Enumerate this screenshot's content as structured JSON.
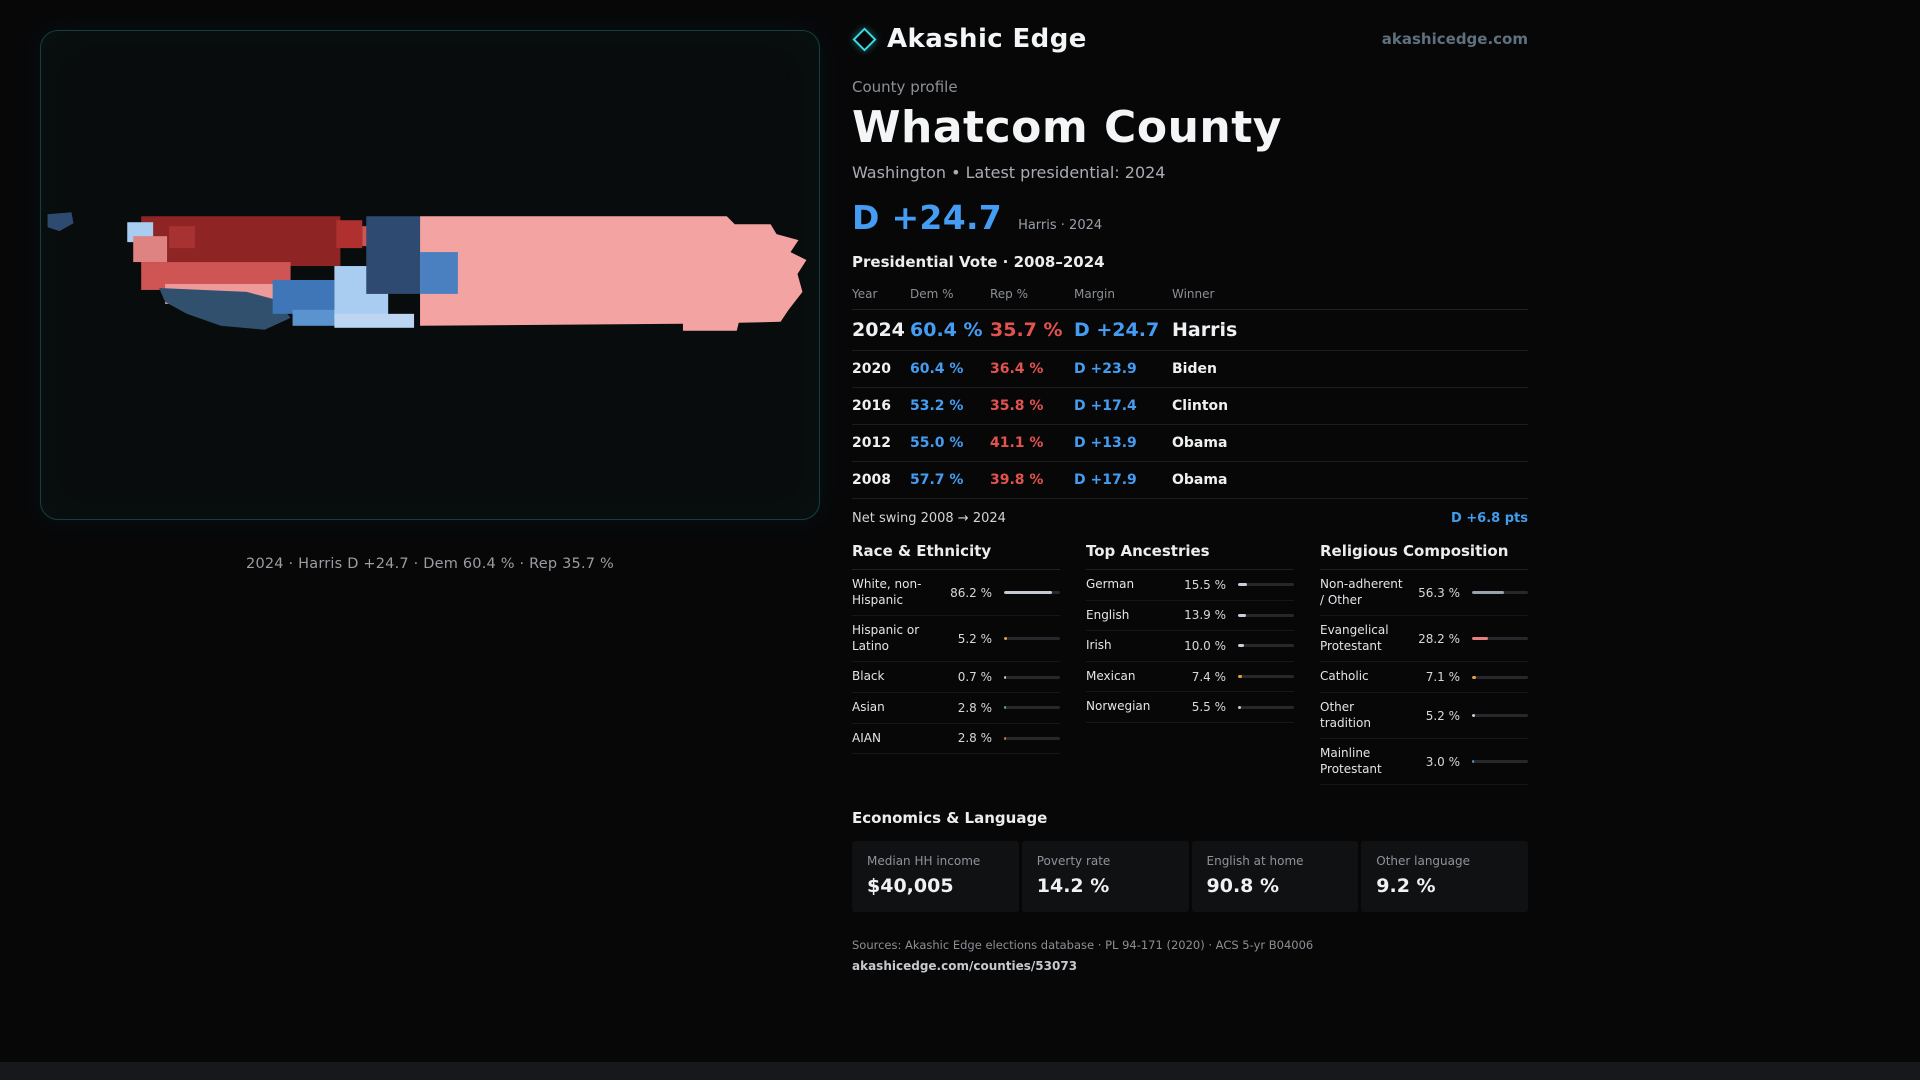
{
  "palette": {
    "background": "#070708",
    "panel_border": "#173d41",
    "accent_cyan": "#39dce2",
    "dem_blue": "#459df3",
    "rep_red": "#e3524e",
    "map_pink": "#f4a3a3",
    "map_dark_red": "#8e2424",
    "map_navy": "#2e4a70",
    "map_light_blue": "#a9cdf0"
  },
  "map_panel": {
    "caption": "2024 · Harris D +24.7 · Dem 60.4 % · Rep 35.7 %"
  },
  "header": {
    "brand": "Akashic Edge",
    "domain": "akashicedge.com",
    "kicker": "County profile",
    "title": "Whatcom County",
    "subtitle": "Washington • Latest presidential: 2024",
    "margin_big": "D +24.7",
    "margin_note": "Harris · 2024"
  },
  "vote_table": {
    "title": "Presidential Vote · 2008–2024",
    "columns": {
      "year": "Year",
      "dem": "Dem %",
      "rep": "Rep %",
      "margin": "Margin",
      "winner": "Winner"
    },
    "rows": [
      {
        "year": "2024",
        "dem": "60.4 %",
        "rep": "35.7 %",
        "margin": "D +24.7",
        "winner": "Harris"
      },
      {
        "year": "2020",
        "dem": "60.4 %",
        "rep": "36.4 %",
        "margin": "D +23.9",
        "winner": "Biden"
      },
      {
        "year": "2016",
        "dem": "53.2 %",
        "rep": "35.8 %",
        "margin": "D +17.4",
        "winner": "Clinton"
      },
      {
        "year": "2012",
        "dem": "55.0 %",
        "rep": "41.1 %",
        "margin": "D +13.9",
        "winner": "Obama"
      },
      {
        "year": "2008",
        "dem": "57.7 %",
        "rep": "39.8 %",
        "margin": "D +17.9",
        "winner": "Obama"
      }
    ],
    "net_swing_label": "Net swing 2008 → 2024",
    "net_swing_value": "D +6.8 pts"
  },
  "demographics": {
    "race": {
      "title": "Race & Ethnicity",
      "items": [
        {
          "label": "White, non-Hispanic",
          "value": "86.2 %",
          "pct": 86.2,
          "color": "#c4cad4"
        },
        {
          "label": "Hispanic or Latino",
          "value": "5.2 %",
          "pct": 5.2,
          "color": "#e5a23c"
        },
        {
          "label": "Black",
          "value": "0.7 %",
          "pct": 0.7,
          "color": "#c9ced8"
        },
        {
          "label": "Asian",
          "value": "2.8 %",
          "pct": 2.8,
          "color": "#3bbf8a"
        },
        {
          "label": "AIAN",
          "value": "2.8 %",
          "pct": 2.8,
          "color": "#e07840"
        }
      ]
    },
    "ancestries": {
      "title": "Top Ancestries",
      "items": [
        {
          "label": "German",
          "value": "15.5 %",
          "pct": 15.5,
          "color": "#c9ced8"
        },
        {
          "label": "English",
          "value": "13.9 %",
          "pct": 13.9,
          "color": "#c9ced8"
        },
        {
          "label": "Irish",
          "value": "10.0 %",
          "pct": 10.0,
          "color": "#c9ced8"
        },
        {
          "label": "Mexican",
          "value": "7.4 %",
          "pct": 7.4,
          "color": "#e5a23c"
        },
        {
          "label": "Norwegian",
          "value": "5.5 %",
          "pct": 5.5,
          "color": "#c9ced8"
        }
      ]
    },
    "religion": {
      "title": "Religious Composition",
      "items": [
        {
          "label": "Non-adherent / Other",
          "value": "56.3 %",
          "pct": 56.3,
          "color": "#9aa2ae"
        },
        {
          "label": "Evangelical Protestant",
          "value": "28.2 %",
          "pct": 28.2,
          "color": "#e87f7f"
        },
        {
          "label": "Catholic",
          "value": "7.1 %",
          "pct": 7.1,
          "color": "#e5a23c"
        },
        {
          "label": "Other tradition",
          "value": "5.2 %",
          "pct": 5.2,
          "color": "#c9ced8"
        },
        {
          "label": "Mainline Protestant",
          "value": "3.0 %",
          "pct": 3.0,
          "color": "#5b8fd6"
        }
      ]
    }
  },
  "economics": {
    "title": "Economics & Language",
    "stats": [
      {
        "label": "Median HH income",
        "value": "$40,005"
      },
      {
        "label": "Poverty rate",
        "value": "14.2 %"
      },
      {
        "label": "English at home",
        "value": "90.8 %"
      },
      {
        "label": "Other language",
        "value": "9.2 %"
      }
    ]
  },
  "footer": {
    "sources": "Sources: Akashic Edge elections database · PL 94-171 (2020) · ACS 5-yr B04006",
    "permalink": "akashicedge.com/counties/53073"
  }
}
